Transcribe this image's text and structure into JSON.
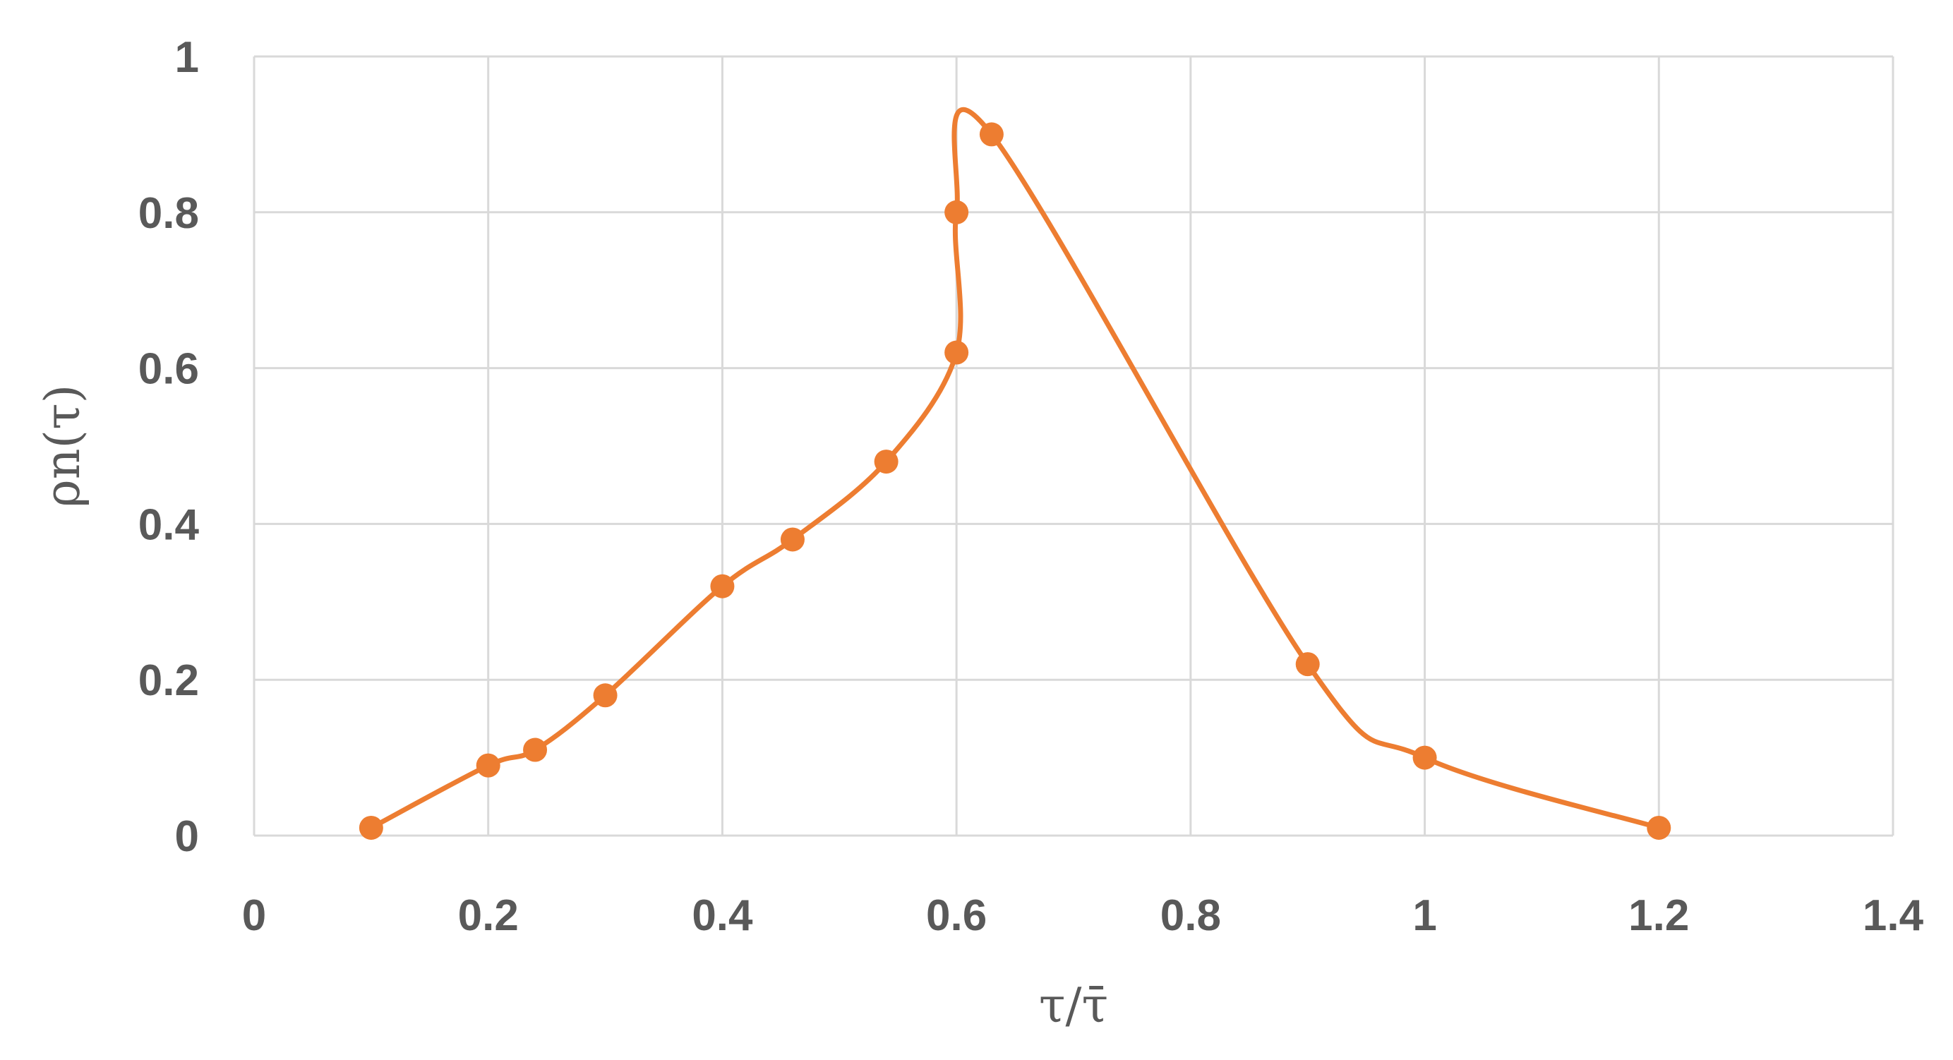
{
  "chart_data": {
    "type": "scatter",
    "title": "",
    "xlabel": "τ/τ̄",
    "ylabel": "ρn(τ)",
    "xlim": [
      0,
      1.4
    ],
    "ylim": [
      0,
      1
    ],
    "xticks": [
      0,
      0.2,
      0.4,
      0.6,
      0.8,
      1,
      1.2,
      1.4
    ],
    "yticks": [
      0,
      0.2,
      0.4,
      0.6,
      0.8,
      1
    ],
    "x_tick_labels": [
      "0",
      "0.2",
      "0.4",
      "0.6",
      "0.8",
      "1",
      "1.2",
      "1.4"
    ],
    "y_tick_labels": [
      "0",
      "0.2",
      "0.4",
      "0.6",
      "0.8",
      "1"
    ],
    "grid": true,
    "legend": "none",
    "smooth_line": true,
    "series": [
      {
        "color": "#ED7D31",
        "marker": "circle",
        "points": [
          {
            "x": 0.1,
            "y": 0.01
          },
          {
            "x": 0.2,
            "y": 0.09
          },
          {
            "x": 0.24,
            "y": 0.11
          },
          {
            "x": 0.3,
            "y": 0.18
          },
          {
            "x": 0.4,
            "y": 0.32
          },
          {
            "x": 0.46,
            "y": 0.38
          },
          {
            "x": 0.54,
            "y": 0.48
          },
          {
            "x": 0.6,
            "y": 0.62
          },
          {
            "x": 0.6,
            "y": 0.8
          },
          {
            "x": 0.63,
            "y": 0.9
          },
          {
            "x": 0.9,
            "y": 0.22
          },
          {
            "x": 1.0,
            "y": 0.1
          },
          {
            "x": 1.2,
            "y": 0.01
          }
        ]
      }
    ]
  }
}
